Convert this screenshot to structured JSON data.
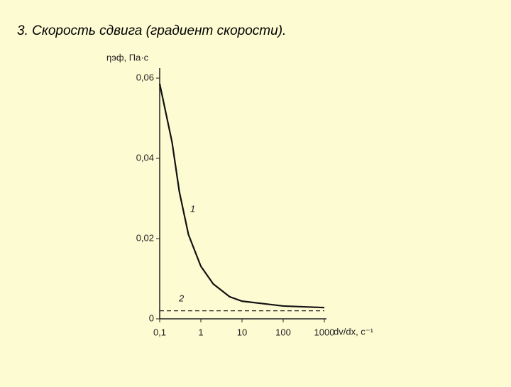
{
  "title": "3. Скорость сдвига (градиент скорости).",
  "chart_data": {
    "type": "line",
    "ylabel": "ηэф, Па·с",
    "xlabel": "dv/dx, с⁻¹",
    "xscale": "log",
    "xlim": [
      0.1,
      1000
    ],
    "xticks": [
      {
        "value": 0.1,
        "label": "0,1"
      },
      1,
      10,
      100,
      1000
    ],
    "ylim": [
      0,
      0.06
    ],
    "yticks": [
      0,
      {
        "value": 0.02,
        "label": "0,02"
      },
      {
        "value": 0.04,
        "label": "0,04"
      },
      {
        "value": 0.06,
        "label": "0,06"
      }
    ],
    "series": [
      {
        "name": "1",
        "color": "#111111",
        "dashed": false,
        "x": [
          0.1,
          0.2,
          0.3,
          0.5,
          1,
          2,
          5,
          10,
          100,
          1000
        ],
        "values": [
          0.0586,
          0.044,
          0.0317,
          0.021,
          0.0131,
          0.0087,
          0.0055,
          0.0044,
          0.0032,
          0.0028
        ]
      },
      {
        "name": "2",
        "color": "#111111",
        "dashed": true,
        "x": [
          0.1,
          1000
        ],
        "values": [
          0.002,
          0.002
        ]
      }
    ]
  }
}
